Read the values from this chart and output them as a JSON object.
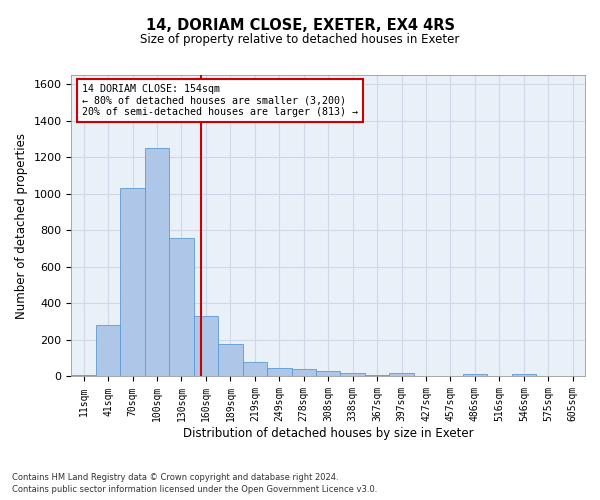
{
  "title1": "14, DORIAM CLOSE, EXETER, EX4 4RS",
  "title2": "Size of property relative to detached houses in Exeter",
  "xlabel": "Distribution of detached houses by size in Exeter",
  "ylabel": "Number of detached properties",
  "bar_labels": [
    "11sqm",
    "41sqm",
    "70sqm",
    "100sqm",
    "130sqm",
    "160sqm",
    "189sqm",
    "219sqm",
    "249sqm",
    "278sqm",
    "308sqm",
    "338sqm",
    "367sqm",
    "397sqm",
    "427sqm",
    "457sqm",
    "486sqm",
    "516sqm",
    "546sqm",
    "575sqm",
    "605sqm"
  ],
  "bar_values": [
    10,
    280,
    1030,
    1250,
    760,
    330,
    180,
    80,
    45,
    40,
    30,
    20,
    10,
    20,
    5,
    0,
    15,
    0,
    15,
    0,
    0
  ],
  "bar_color": "#aec6e8",
  "bar_edgecolor": "#5b9bd5",
  "vline_color": "#cc0000",
  "ylim": [
    0,
    1650
  ],
  "yticks": [
    0,
    200,
    400,
    600,
    800,
    1000,
    1200,
    1400,
    1600
  ],
  "grid_color": "#d0d8e8",
  "bg_color": "#eaf0f8",
  "annotation_line1": "14 DORIAM CLOSE: 154sqm",
  "annotation_line2": "← 80% of detached houses are smaller (3,200)",
  "annotation_line3": "20% of semi-detached houses are larger (813) →",
  "annotation_box_color": "#cc0000",
  "footer1": "Contains HM Land Registry data © Crown copyright and database right 2024.",
  "footer2": "Contains public sector information licensed under the Open Government Licence v3.0."
}
